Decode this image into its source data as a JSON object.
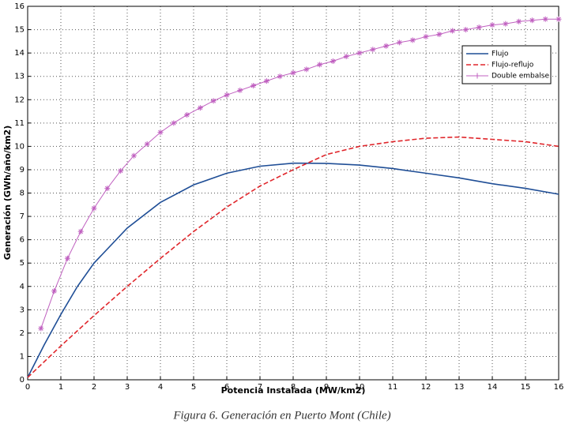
{
  "chart_data": {
    "type": "line",
    "caption": "Figura 6. Generación en Puerto Mont (Chile)",
    "xlabel": "Potencia Instalada (MW/km2)",
    "ylabel": "Generación (GWh/año/km2)",
    "xlim": [
      0,
      16
    ],
    "ylim": [
      0,
      16
    ],
    "xticks": [
      0,
      1,
      2,
      3,
      4,
      5,
      6,
      7,
      8,
      9,
      10,
      11,
      12,
      13,
      14,
      15,
      16
    ],
    "yticks": [
      0,
      1,
      2,
      3,
      4,
      5,
      6,
      7,
      8,
      9,
      10,
      11,
      12,
      13,
      14,
      15,
      16
    ],
    "grid": true,
    "legend": "upper right",
    "series": [
      {
        "name": "Flujo",
        "color": "#1f4e96",
        "style": "solid",
        "x": [
          0,
          0.5,
          1,
          1.5,
          2,
          3,
          4,
          5,
          6,
          7,
          8,
          9,
          10,
          11,
          12,
          13,
          14,
          15,
          16
        ],
        "values": [
          0.1,
          1.5,
          2.8,
          4,
          5,
          6.5,
          7.6,
          8.35,
          8.85,
          9.15,
          9.28,
          9.27,
          9.2,
          9.05,
          8.85,
          8.65,
          8.4,
          8.2,
          7.95
        ]
      },
      {
        "name": "Flujo-reflujo",
        "color": "#e0262b",
        "style": "dashed",
        "x": [
          0,
          1,
          2,
          3,
          4,
          5,
          6,
          7,
          8,
          9,
          10,
          11,
          12,
          13,
          14,
          15,
          16
        ],
        "values": [
          0.1,
          1.45,
          2.75,
          4,
          5.2,
          6.35,
          7.4,
          8.3,
          9,
          9.65,
          10,
          10.2,
          10.35,
          10.4,
          10.3,
          10.2,
          10
        ]
      },
      {
        "name": "Double embalse",
        "color": "#c060c0",
        "style": "marker",
        "x": [
          0.4,
          0.8,
          1.2,
          1.6,
          2,
          2.4,
          2.8,
          3.2,
          3.6,
          4,
          4.4,
          4.8,
          5.2,
          5.6,
          6,
          6.4,
          6.8,
          7.2,
          7.6,
          8,
          8.4,
          8.8,
          9.2,
          9.6,
          10,
          10.4,
          10.8,
          11.2,
          11.6,
          12,
          12.4,
          12.8,
          13.2,
          13.6,
          14,
          14.4,
          14.8,
          15.2,
          15.6,
          16
        ],
        "values": [
          2.2,
          3.8,
          5.2,
          6.35,
          7.35,
          8.2,
          8.95,
          9.6,
          10.1,
          10.6,
          11,
          11.35,
          11.65,
          11.95,
          12.2,
          12.4,
          12.6,
          12.8,
          13,
          13.15,
          13.3,
          13.5,
          13.65,
          13.85,
          14,
          14.15,
          14.3,
          14.45,
          14.55,
          14.7,
          14.8,
          14.95,
          15,
          15.1,
          15.2,
          15.25,
          15.35,
          15.4,
          15.45,
          15.45
        ]
      }
    ]
  }
}
